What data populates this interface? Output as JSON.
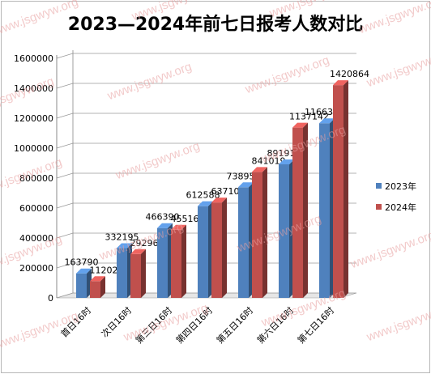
{
  "chart_data": {
    "type": "bar",
    "title": "2023—2024年前七日报考人数对比",
    "categories": [
      "首日16时",
      "次日16时",
      "第三日16时",
      "第四日16时",
      "第五日16时",
      "第六日16时",
      "第七日16时"
    ],
    "series": [
      {
        "name": "2023年",
        "color": "#4f81bd",
        "values": [
          163790,
          332195,
          466390,
          612588,
          738959,
          891919,
          1166313
        ]
      },
      {
        "name": "2024年",
        "color": "#c0504d",
        "values": [
          112022,
          292964,
          455167,
          637108,
          841019,
          1137142,
          1420864
        ]
      }
    ],
    "yticks": [
      "0",
      "200000",
      "400000",
      "600000",
      "800000",
      "1000000",
      "1200000",
      "1400000",
      "1600000"
    ],
    "ylim": [
      0,
      1600000
    ],
    "grid": true,
    "legend": "right",
    "watermark": "www.jsgwyw.org"
  }
}
